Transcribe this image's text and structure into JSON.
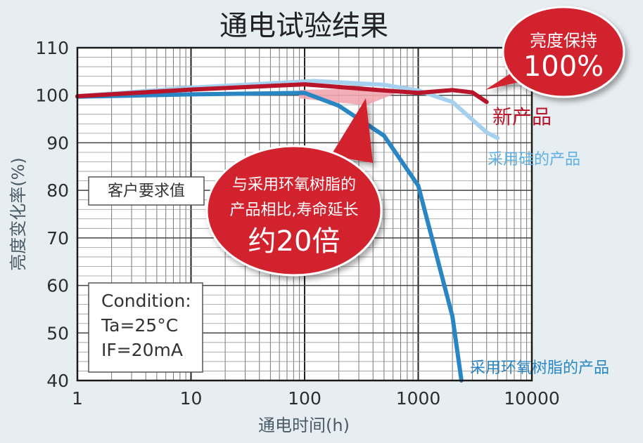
{
  "chart_data": {
    "type": "line",
    "title": "通电试验结果",
    "xlabel": "通电时间(h)",
    "ylabel": "亮度变化率(%)",
    "x_scale": "log",
    "xlim": [
      1,
      10000
    ],
    "ylim": [
      40,
      110
    ],
    "x_ticks": [
      "1",
      "10",
      "100",
      "1000",
      "10000"
    ],
    "y_ticks": [
      "40",
      "50",
      "60",
      "70",
      "80",
      "90",
      "100",
      "110"
    ],
    "grid": true,
    "series": [
      {
        "name": "采用环氧树脂的产品",
        "color": "#2a86c3",
        "x": [
          1,
          10,
          100,
          200,
          500,
          1000,
          2000,
          2400
        ],
        "y": [
          99.7,
          100.2,
          100.5,
          97.8,
          91.5,
          81,
          53.5,
          40
        ]
      },
      {
        "name": "采用硅的产品",
        "color": "#a6d1ee",
        "x": [
          1,
          10,
          120,
          500,
          1000,
          2000,
          4000,
          5000
        ],
        "y": [
          99.8,
          101.6,
          103,
          102.2,
          101,
          98.6,
          92.2,
          91
        ]
      },
      {
        "name": "新产品",
        "color": "#b8142a",
        "x": [
          1,
          10,
          100,
          500,
          1000,
          2000,
          3000,
          4000
        ],
        "y": [
          99.8,
          101.2,
          102.3,
          101,
          100.5,
          101.1,
          100.6,
          98.6
        ]
      }
    ],
    "reference_line": {
      "label": "客户要求值",
      "y": 80
    },
    "condition_box": {
      "lines": [
        "Condition:",
        "Ta=25°C",
        "IF=20mA"
      ]
    },
    "callouts": [
      {
        "lines": [
          "亮度保持",
          "100%"
        ]
      },
      {
        "lines": [
          "与采用环氧树脂的",
          "产品相比,寿命延长",
          "约20倍"
        ]
      }
    ]
  },
  "colors": {
    "accent_red": "#d2202f",
    "frame": "#1a1a1a",
    "background": "#e7eef1"
  }
}
